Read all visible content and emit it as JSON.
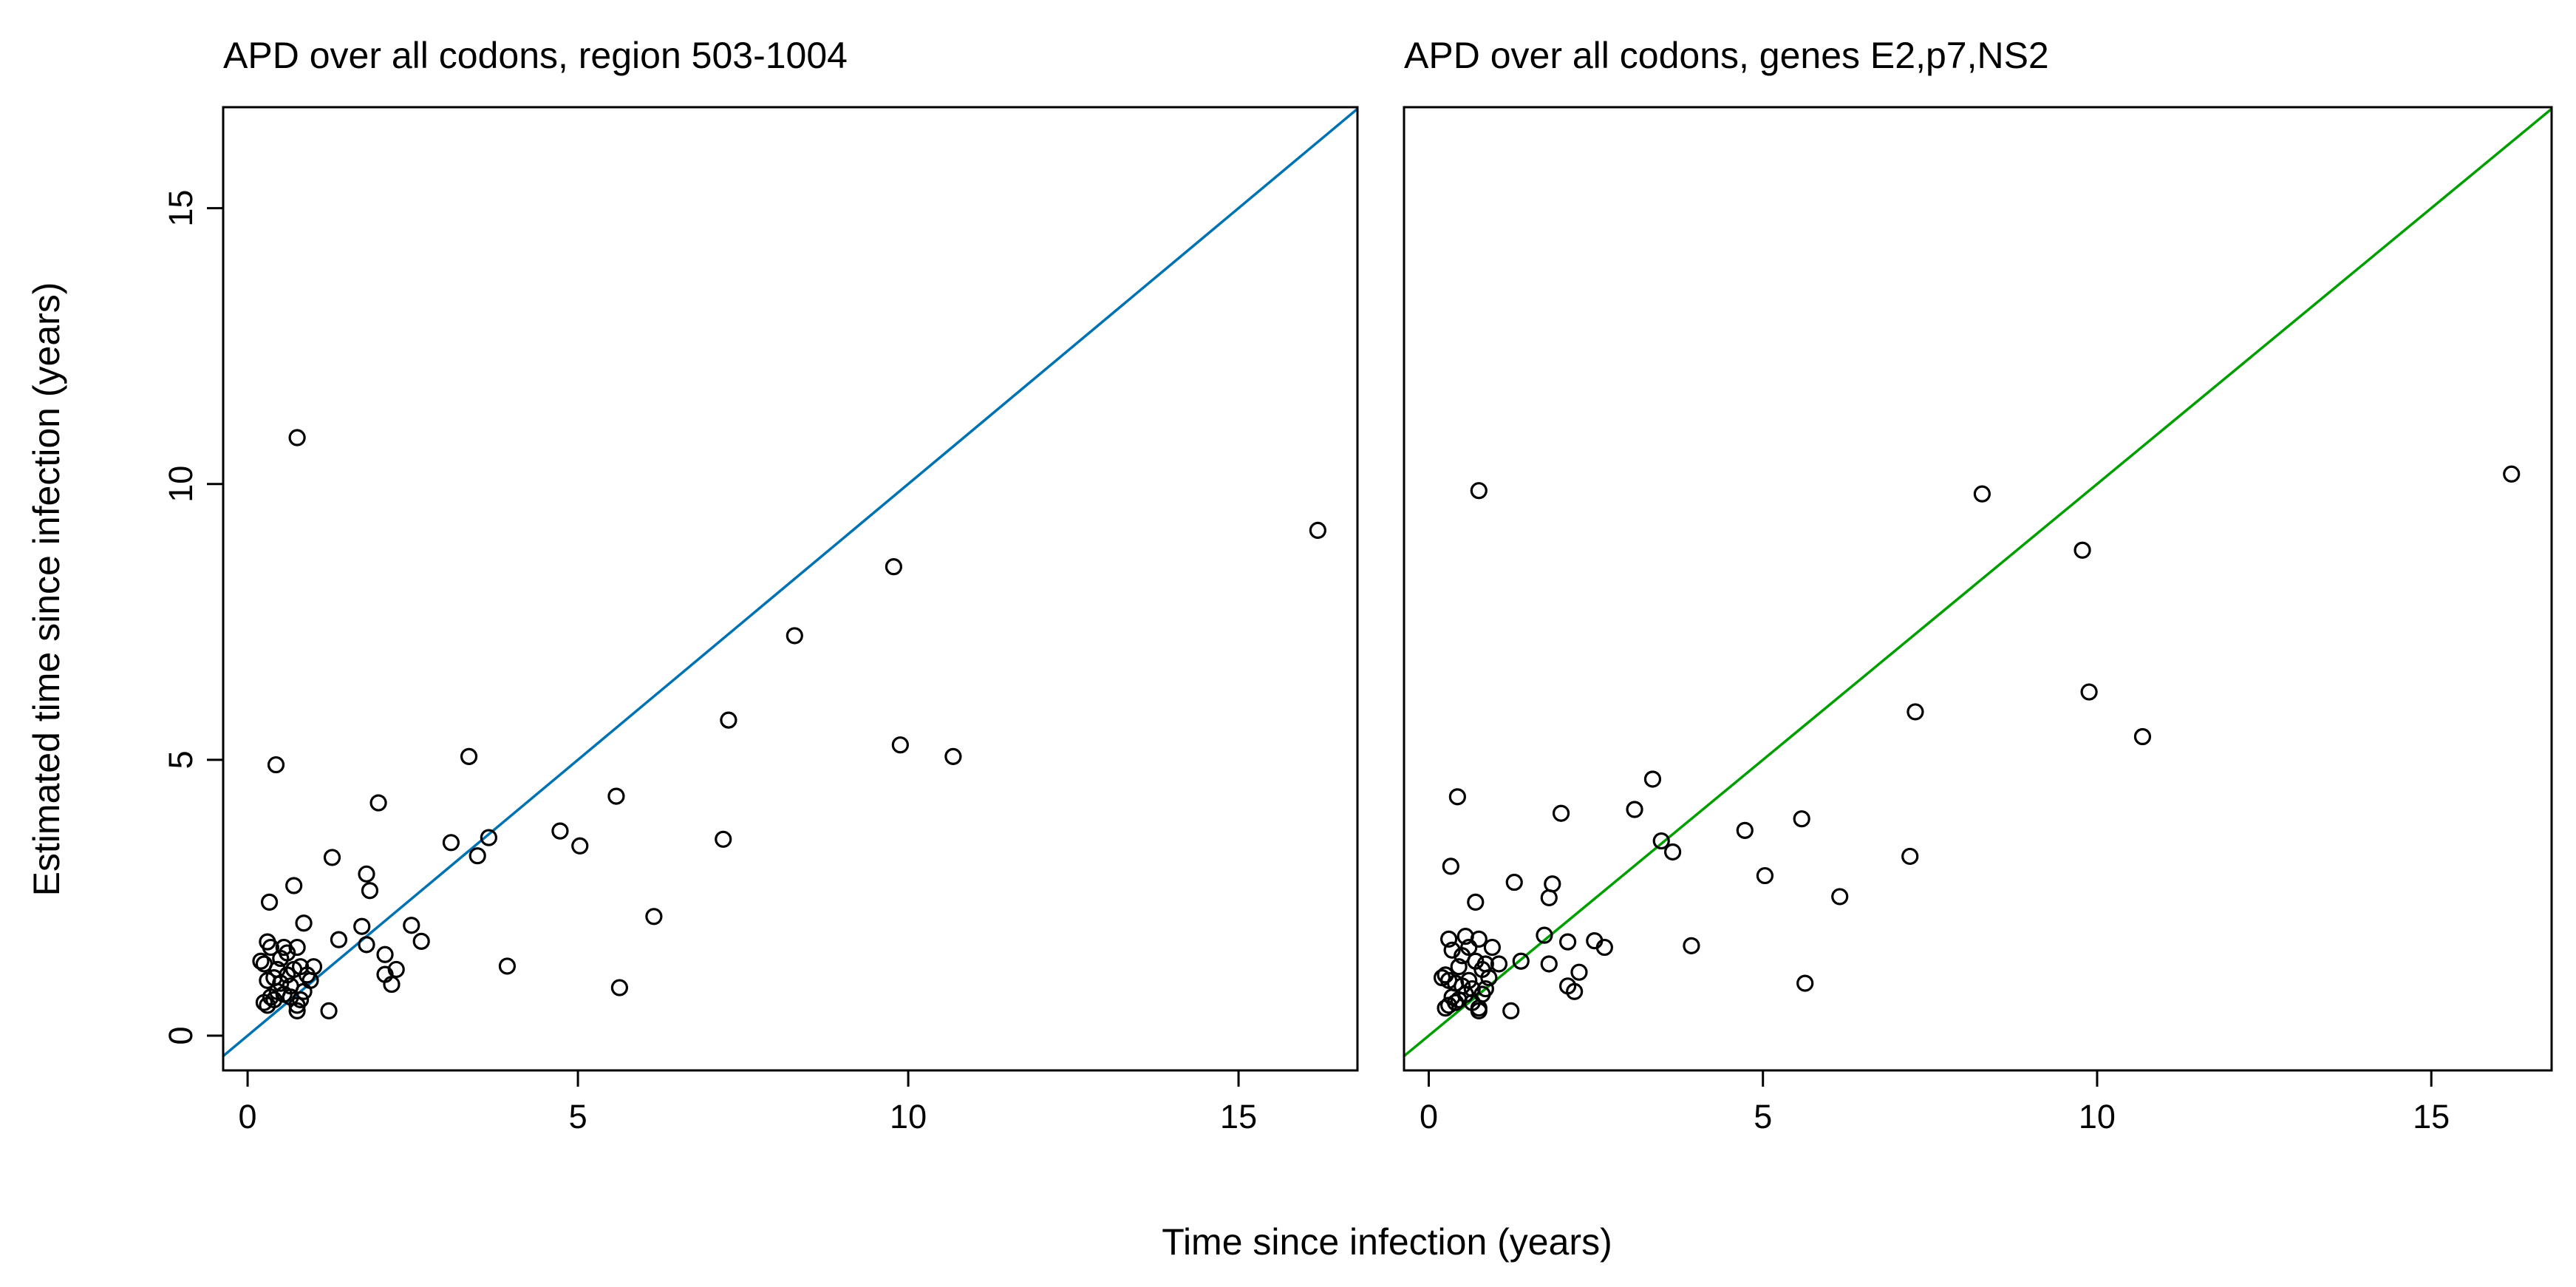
{
  "chart_data": [
    {
      "type": "scatter",
      "title": "APD over all codons, region 503-1004",
      "title_color": "#0072B2",
      "line_color": "#0072B2",
      "reference_line": "y = x",
      "xlim": [
        -0.37,
        16.8
      ],
      "ylim": [
        -0.63,
        16.83
      ],
      "xticks": [
        0,
        5,
        10,
        15
      ],
      "yticks": [
        0,
        5,
        10,
        15
      ],
      "marker": "open-circle",
      "grid": false,
      "points": [
        [
          0.75,
          10.84
        ],
        [
          9.78,
          8.5
        ],
        [
          16.2,
          9.16
        ],
        [
          8.28,
          7.25
        ],
        [
          7.28,
          5.72
        ],
        [
          0.43,
          4.91
        ],
        [
          3.35,
          5.06
        ],
        [
          9.88,
          5.27
        ],
        [
          10.68,
          5.06
        ],
        [
          1.98,
          4.22
        ],
        [
          5.58,
          4.34
        ],
        [
          4.73,
          3.71
        ],
        [
          5.03,
          3.44
        ],
        [
          7.2,
          3.56
        ],
        [
          3.08,
          3.5
        ],
        [
          3.65,
          3.59
        ],
        [
          3.48,
          3.26
        ],
        [
          1.28,
          3.23
        ],
        [
          1.8,
          2.93
        ],
        [
          1.85,
          2.63
        ],
        [
          0.7,
          2.72
        ],
        [
          6.15,
          2.16
        ],
        [
          0.33,
          2.42
        ],
        [
          0.85,
          2.04
        ],
        [
          1.73,
          1.98
        ],
        [
          2.48,
          2.0
        ],
        [
          2.63,
          1.71
        ],
        [
          1.38,
          1.74
        ],
        [
          1.8,
          1.65
        ],
        [
          2.08,
          1.47
        ],
        [
          2.08,
          1.11
        ],
        [
          2.18,
          0.93
        ],
        [
          2.25,
          1.2
        ],
        [
          3.93,
          1.26
        ],
        [
          5.63,
          0.87
        ],
        [
          1.23,
          0.45
        ],
        [
          0.3,
          1.7
        ],
        [
          0.35,
          1.6
        ],
        [
          0.25,
          1.3
        ],
        [
          0.45,
          1.2
        ],
        [
          0.55,
          1.6
        ],
        [
          0.6,
          1.5
        ],
        [
          0.75,
          1.6
        ],
        [
          0.3,
          1.0
        ],
        [
          0.4,
          1.05
        ],
        [
          0.5,
          0.95
        ],
        [
          0.6,
          1.1
        ],
        [
          0.7,
          1.2
        ],
        [
          0.8,
          1.25
        ],
        [
          0.9,
          1.1
        ],
        [
          1.0,
          1.25
        ],
        [
          0.35,
          0.7
        ],
        [
          0.45,
          0.8
        ],
        [
          0.55,
          0.75
        ],
        [
          0.65,
          0.7
        ],
        [
          0.75,
          0.55
        ],
        [
          0.8,
          0.65
        ],
        [
          0.3,
          0.55
        ],
        [
          0.4,
          0.65
        ],
        [
          0.75,
          0.45
        ],
        [
          0.85,
          0.8
        ],
        [
          0.25,
          0.6
        ],
        [
          0.5,
          1.4
        ],
        [
          0.65,
          0.9
        ],
        [
          0.2,
          1.35
        ],
        [
          0.95,
          1.0
        ]
      ]
    },
    {
      "type": "scatter",
      "title": "APD over all codons, genes E2,p7,NS2",
      "title_color": "#009E00",
      "line_color": "#009E00",
      "reference_line": "y = x",
      "xlim": [
        -0.37,
        16.8
      ],
      "ylim": [
        -0.63,
        16.83
      ],
      "xticks": [
        0,
        5,
        10,
        15
      ],
      "yticks": [],
      "marker": "open-circle",
      "grid": false,
      "points": [
        [
          0.75,
          9.88
        ],
        [
          9.78,
          8.8
        ],
        [
          16.2,
          10.18
        ],
        [
          8.28,
          9.82
        ],
        [
          7.28,
          5.87
        ],
        [
          0.43,
          4.33
        ],
        [
          3.35,
          4.65
        ],
        [
          9.88,
          6.23
        ],
        [
          10.68,
          5.42
        ],
        [
          1.98,
          4.03
        ],
        [
          5.58,
          3.93
        ],
        [
          4.73,
          3.72
        ],
        [
          5.03,
          2.9
        ],
        [
          7.2,
          3.25
        ],
        [
          3.08,
          4.1
        ],
        [
          3.65,
          3.33
        ],
        [
          3.48,
          3.53
        ],
        [
          1.28,
          2.78
        ],
        [
          1.8,
          2.5
        ],
        [
          1.85,
          2.75
        ],
        [
          0.7,
          2.42
        ],
        [
          6.15,
          2.52
        ],
        [
          0.33,
          3.07
        ],
        [
          0.85,
          1.3
        ],
        [
          1.73,
          1.82
        ],
        [
          2.48,
          1.72
        ],
        [
          2.63,
          1.6
        ],
        [
          1.38,
          1.35
        ],
        [
          1.8,
          1.3
        ],
        [
          2.08,
          1.7
        ],
        [
          2.08,
          0.9
        ],
        [
          2.18,
          0.8
        ],
        [
          2.25,
          1.15
        ],
        [
          3.93,
          1.63
        ],
        [
          5.63,
          0.95
        ],
        [
          1.23,
          0.45
        ],
        [
          0.3,
          1.75
        ],
        [
          0.35,
          1.55
        ],
        [
          0.25,
          1.1
        ],
        [
          0.45,
          1.25
        ],
        [
          0.55,
          1.8
        ],
        [
          0.6,
          1.6
        ],
        [
          0.75,
          1.75
        ],
        [
          0.3,
          1.0
        ],
        [
          0.4,
          0.95
        ],
        [
          0.5,
          0.9
        ],
        [
          0.6,
          1.0
        ],
        [
          0.7,
          1.35
        ],
        [
          0.8,
          1.2
        ],
        [
          0.9,
          1.05
        ],
        [
          1.05,
          1.3
        ],
        [
          0.35,
          0.7
        ],
        [
          0.45,
          0.65
        ],
        [
          0.55,
          0.75
        ],
        [
          0.65,
          0.6
        ],
        [
          0.75,
          0.5
        ],
        [
          0.8,
          0.75
        ],
        [
          0.3,
          0.55
        ],
        [
          0.4,
          0.6
        ],
        [
          0.75,
          0.45
        ],
        [
          0.85,
          0.85
        ],
        [
          0.25,
          0.5
        ],
        [
          0.5,
          1.45
        ],
        [
          0.65,
          0.85
        ],
        [
          0.2,
          1.05
        ],
        [
          0.95,
          1.6
        ]
      ]
    }
  ],
  "shared": {
    "xlabel": "Time since infection (years)",
    "ylabel": "Estimated time since infection (years)"
  }
}
